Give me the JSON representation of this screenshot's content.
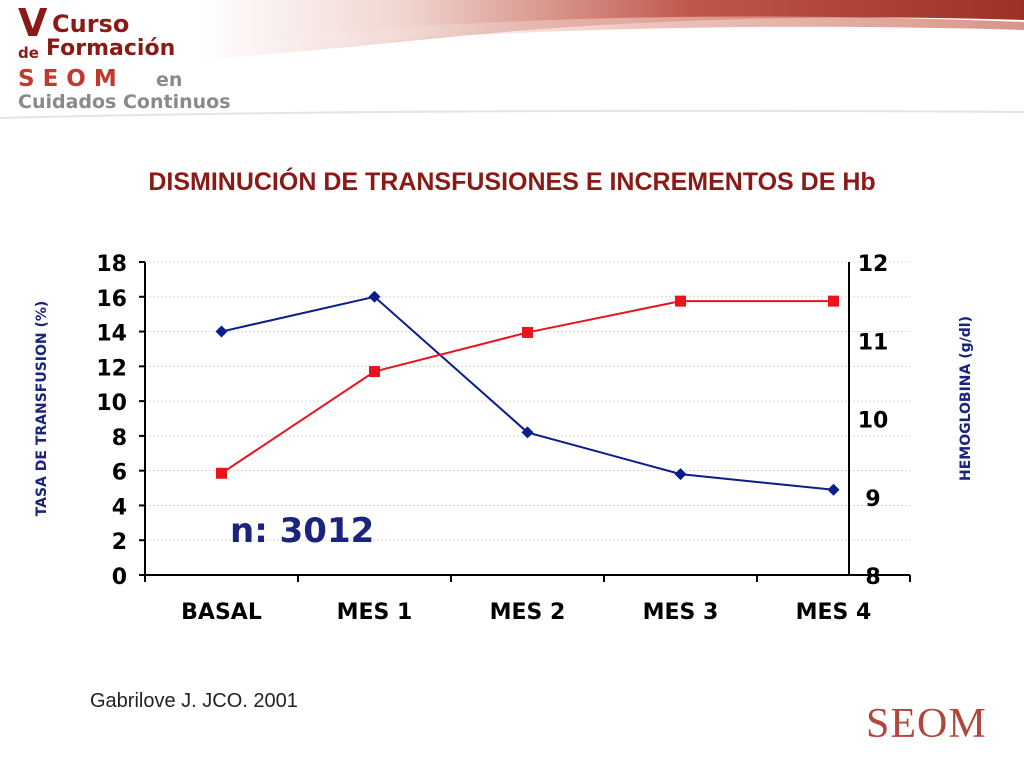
{
  "header": {
    "logo_v": "V",
    "logo_curso": "Curso",
    "logo_de": "de",
    "logo_formacion": "Formación",
    "logo_seom": "SEOM",
    "logo_en": "en",
    "logo_cuidados": "Cuidados Continuos",
    "band_color": "#b03a2e"
  },
  "slide_title": "DISMINUCIÓN DE TRANSFUSIONES E INCREMENTOS DE Hb",
  "citation": "Gabrilove J. JCO. 2001",
  "brand": "SEOM",
  "chart_data": {
    "type": "line",
    "categories": [
      "BASAL",
      "MES 1",
      "MES 2",
      "MES 3",
      "MES 4"
    ],
    "ylabel": "TASA DE TRANSFUSION (%)",
    "y2label": "HEMOGLOBINA (g/dl)",
    "ylim": [
      0,
      18
    ],
    "yticks": [
      0,
      2,
      4,
      6,
      8,
      10,
      12,
      14,
      16,
      18
    ],
    "y2lim": [
      8,
      12
    ],
    "y2ticks": [
      8,
      9,
      10,
      11,
      12
    ],
    "grid": true,
    "annotation": "n: 3012",
    "series": [
      {
        "axis": "left",
        "values": [
          14.0,
          16.0,
          8.2,
          5.8,
          4.9
        ],
        "color": "#0b1c8c",
        "marker": "diamond"
      },
      {
        "axis": "right",
        "values": [
          9.3,
          10.6,
          11.1,
          11.5,
          11.5
        ],
        "color": "#e8141b",
        "marker": "square"
      }
    ]
  }
}
